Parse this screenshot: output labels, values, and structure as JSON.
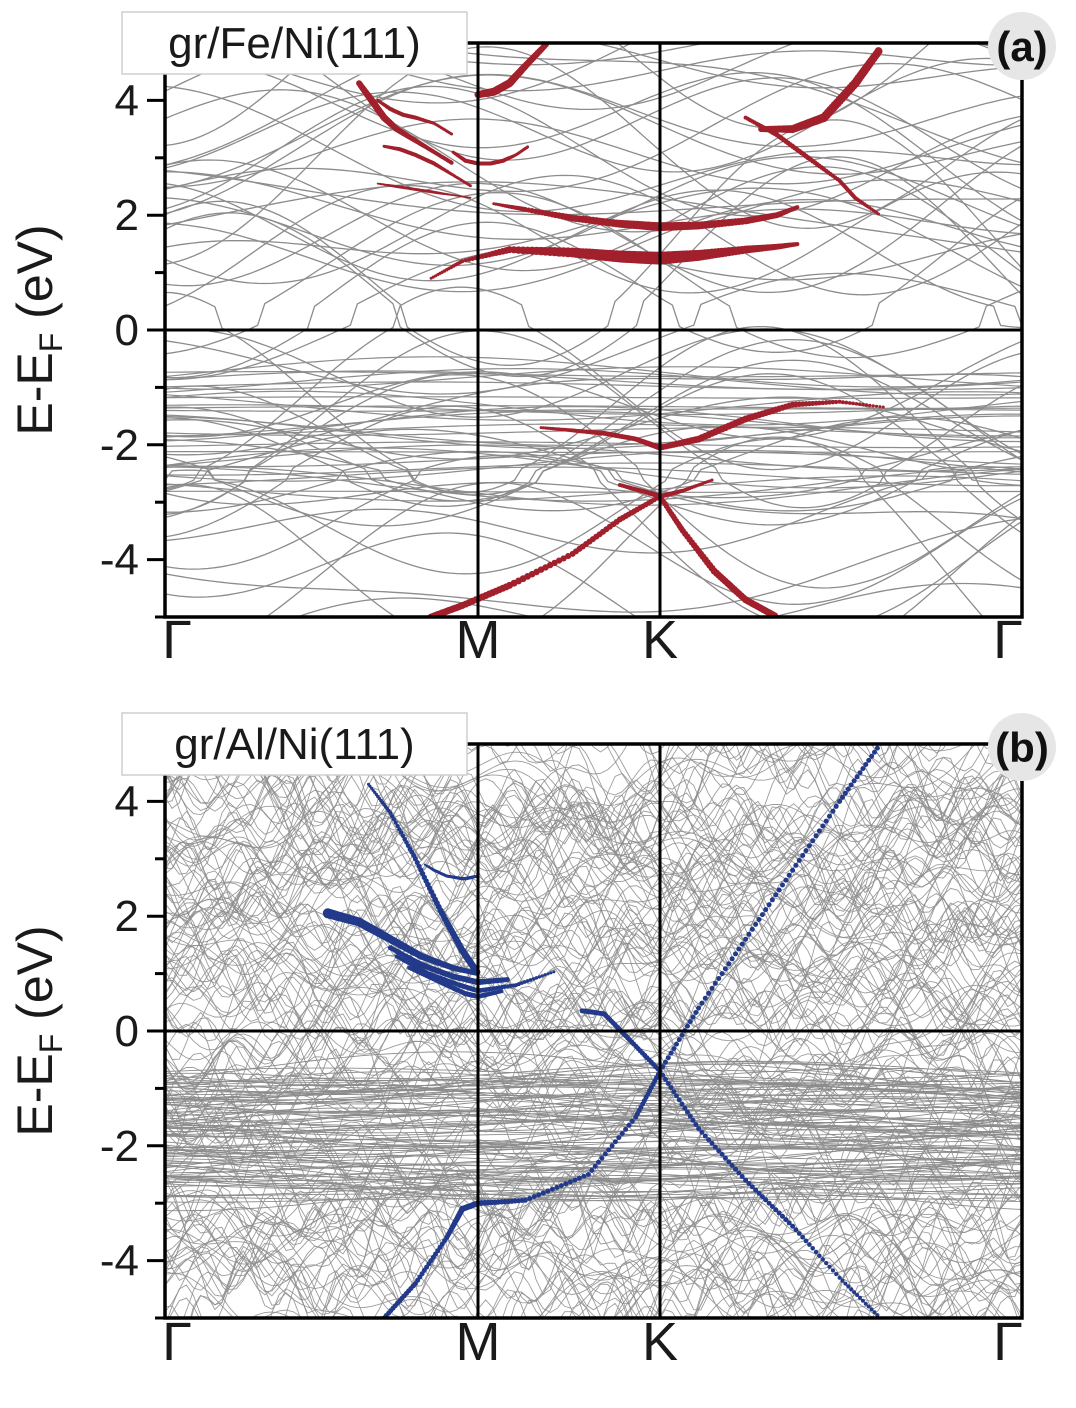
{
  "figure": {
    "band_color": "#8c8c8c",
    "frame_color": "#000000",
    "ylabel_main": "E-E",
    "ylabel_sub": "F",
    "ylabel_unit": " (eV)"
  },
  "chart_data": [
    {
      "type": "line",
      "panel_label": "(a)",
      "title": "gr/Fe/Ni(111)",
      "xlabel": "",
      "ylabel": "E-EF (eV)",
      "ylim": [
        -5,
        5
      ],
      "k_points": [
        "Γ",
        "M",
        "K",
        "Γ"
      ],
      "k_positions": [
        0,
        1,
        1.577,
        2.732
      ],
      "yticks": [
        -4,
        -2,
        0,
        2,
        4
      ],
      "fermi_level": 0,
      "bulk_band_count": 60,
      "projected_color": "#a1202c",
      "series": [
        {
          "name": "projected-top-left",
          "x": [
            0.62,
            0.66,
            0.7,
            0.74,
            0.8,
            0.86,
            0.92
          ],
          "y": [
            4.3,
            4.0,
            3.7,
            3.5,
            3.3,
            3.1,
            2.9
          ],
          "weight": [
            6,
            7,
            7,
            6,
            5,
            4,
            4
          ]
        },
        {
          "name": "projected-branch-3.8",
          "x": [
            0.68,
            0.72,
            0.76,
            0.8,
            0.86,
            0.92
          ],
          "y": [
            4.0,
            3.85,
            3.75,
            3.7,
            3.6,
            3.4
          ],
          "weight": [
            3,
            4,
            4,
            4,
            3,
            3
          ]
        },
        {
          "name": "projected-branch-3.1",
          "x": [
            0.7,
            0.75,
            0.8,
            0.86,
            0.92,
            0.98
          ],
          "y": [
            3.2,
            3.15,
            3.05,
            2.9,
            2.7,
            2.5
          ],
          "weight": [
            3,
            4,
            4,
            4,
            3,
            3
          ]
        },
        {
          "name": "projected-branch-2.5",
          "x": [
            0.68,
            0.74,
            0.8,
            0.86,
            0.92,
            0.98
          ],
          "y": [
            2.55,
            2.5,
            2.45,
            2.4,
            2.35,
            2.3
          ],
          "weight": [
            2,
            3,
            3,
            3,
            2,
            2
          ]
        },
        {
          "name": "projected-M-upper",
          "x": [
            1.0,
            1.05,
            1.1,
            1.15,
            1.22
          ],
          "y": [
            4.1,
            4.15,
            4.3,
            4.6,
            5.0
          ],
          "weight": [
            7,
            8,
            8,
            7,
            6
          ]
        },
        {
          "name": "projected-M-2.9",
          "x": [
            0.92,
            0.96,
            1.0,
            1.04,
            1.08,
            1.12,
            1.16
          ],
          "y": [
            3.1,
            2.95,
            2.9,
            2.9,
            2.95,
            3.05,
            3.2
          ],
          "weight": [
            3,
            4,
            4,
            4,
            4,
            3,
            3
          ]
        },
        {
          "name": "projected-gap-upper-left",
          "x": [
            1.05,
            1.15,
            1.3,
            1.45,
            1.577
          ],
          "y": [
            2.2,
            2.1,
            1.95,
            1.85,
            1.8
          ],
          "weight": [
            3,
            5,
            7,
            8,
            9
          ]
        },
        {
          "name": "projected-gap-upper-right",
          "x": [
            1.577,
            1.7,
            1.85,
            1.95,
            2.02
          ],
          "y": [
            1.8,
            1.82,
            1.9,
            2.0,
            2.15
          ],
          "weight": [
            9,
            8,
            7,
            6,
            4
          ]
        },
        {
          "name": "projected-gap-lower-left",
          "x": [
            0.85,
            0.95,
            1.1,
            1.3,
            1.45,
            1.577
          ],
          "y": [
            0.9,
            1.2,
            1.4,
            1.35,
            1.28,
            1.25
          ],
          "weight": [
            3,
            4,
            7,
            10,
            12,
            13
          ]
        },
        {
          "name": "projected-gap-lower-right",
          "x": [
            1.577,
            1.7,
            1.85,
            1.95,
            2.02
          ],
          "y": [
            1.25,
            1.3,
            1.4,
            1.45,
            1.5
          ],
          "weight": [
            13,
            11,
            8,
            6,
            4
          ]
        },
        {
          "name": "projected-fan-right",
          "x": [
            1.85,
            1.95,
            2.05,
            2.15,
            2.2,
            2.28
          ],
          "y": [
            3.7,
            3.4,
            3.0,
            2.6,
            2.3,
            2.0
          ],
          "weight": [
            4,
            5,
            5,
            4,
            4,
            3
          ]
        },
        {
          "name": "projected-right-upper",
          "x": [
            1.9,
            2.0,
            2.1,
            2.2,
            2.28
          ],
          "y": [
            3.5,
            3.5,
            3.7,
            4.3,
            4.9
          ],
          "weight": [
            6,
            8,
            9,
            9,
            8
          ]
        },
        {
          "name": "projected-valence-fan",
          "x": [
            1.2,
            1.3,
            1.4,
            1.5,
            1.577
          ],
          "y": [
            -1.7,
            -1.75,
            -1.8,
            -1.9,
            -2.05
          ],
          "weight": [
            3,
            4,
            5,
            5,
            6
          ]
        },
        {
          "name": "projected-valence-right",
          "x": [
            1.577,
            1.7,
            1.85,
            2.0,
            2.15,
            2.3
          ],
          "y": [
            -2.05,
            -1.9,
            -1.55,
            -1.3,
            -1.25,
            -1.35
          ],
          "weight": [
            6,
            7,
            7,
            6,
            4,
            3
          ]
        },
        {
          "name": "projected-K-crossing-left",
          "x": [
            0.85,
            0.95,
            1.1,
            1.3,
            1.45,
            1.577
          ],
          "y": [
            -5.0,
            -4.8,
            -4.45,
            -3.9,
            -3.3,
            -2.9
          ],
          "weight": [
            7,
            7,
            7,
            6,
            6,
            5
          ]
        },
        {
          "name": "projected-K-crossing-right",
          "x": [
            1.577,
            1.65,
            1.75,
            1.85,
            1.95
          ],
          "y": [
            -2.9,
            -3.5,
            -4.2,
            -4.7,
            -5.0
          ],
          "weight": [
            5,
            6,
            7,
            7,
            7
          ]
        },
        {
          "name": "projected-K-upper",
          "x": [
            1.45,
            1.55,
            1.577,
            1.65,
            1.75
          ],
          "y": [
            -2.7,
            -2.85,
            -2.9,
            -2.8,
            -2.6
          ],
          "weight": [
            4,
            5,
            5,
            4,
            3
          ]
        }
      ]
    },
    {
      "type": "line",
      "panel_label": "(b)",
      "title": "gr/Al/Ni(111)",
      "xlabel": "",
      "ylabel": "E-EF (eV)",
      "ylim": [
        -5,
        5
      ],
      "k_points": [
        "Γ",
        "M",
        "K",
        "Γ"
      ],
      "k_positions": [
        0,
        1,
        1.577,
        2.732
      ],
      "yticks": [
        -4,
        -2,
        0,
        2,
        4
      ],
      "fermi_level": 0,
      "bulk_band_count": 160,
      "projected_color": "#233a8a",
      "series": [
        {
          "name": "projected-steep-left",
          "x": [
            0.65,
            0.72,
            0.8,
            0.88,
            0.95,
            1.0
          ],
          "y": [
            4.3,
            3.8,
            3.0,
            2.1,
            1.4,
            1.0
          ],
          "weight": [
            3,
            4,
            5,
            6,
            7,
            7
          ]
        },
        {
          "name": "projected-bundle-1",
          "x": [
            0.52,
            0.62,
            0.72,
            0.82,
            0.92,
            1.0
          ],
          "y": [
            2.05,
            1.9,
            1.6,
            1.3,
            1.1,
            1.0
          ],
          "weight": [
            10,
            9,
            8,
            7,
            6,
            5
          ]
        },
        {
          "name": "projected-bundle-2",
          "x": [
            0.72,
            0.82,
            0.92,
            1.0,
            1.1
          ],
          "y": [
            1.45,
            1.15,
            0.95,
            0.85,
            0.9
          ],
          "weight": [
            5,
            6,
            6,
            6,
            5
          ]
        },
        {
          "name": "projected-bundle-3",
          "x": [
            0.74,
            0.84,
            0.94,
            1.0,
            1.12,
            1.25
          ],
          "y": [
            1.3,
            1.0,
            0.8,
            0.7,
            0.8,
            1.05
          ],
          "weight": [
            4,
            5,
            5,
            5,
            4,
            3
          ]
        },
        {
          "name": "projected-bundle-4",
          "x": [
            0.78,
            0.88,
            0.96,
            1.0,
            1.08
          ],
          "y": [
            1.1,
            0.85,
            0.65,
            0.6,
            0.7
          ],
          "weight": [
            4,
            5,
            5,
            5,
            4
          ]
        },
        {
          "name": "projected-M-upper-dots",
          "x": [
            0.83,
            0.86,
            0.9,
            0.95,
            1.0
          ],
          "y": [
            2.9,
            2.8,
            2.7,
            2.65,
            2.7
          ],
          "weight": [
            2,
            3,
            3,
            3,
            3
          ]
        },
        {
          "name": "projected-upper-rising",
          "x": [
            0.9,
            0.96,
            1.0
          ],
          "y": [
            2.7,
            2.65,
            2.7
          ],
          "weight": [
            3,
            3,
            3
          ]
        },
        {
          "name": "projected-dirac-cone-up",
          "x": [
            1.577,
            1.7,
            1.85,
            2.0,
            2.15,
            2.28
          ],
          "y": [
            -0.7,
            0.4,
            1.6,
            2.8,
            4.0,
            5.0
          ],
          "weight": [
            5,
            5,
            5,
            5,
            5,
            5
          ]
        },
        {
          "name": "projected-dirac-cone-down",
          "x": [
            1.577,
            1.7,
            1.85,
            2.0,
            2.15,
            2.28
          ],
          "y": [
            -0.7,
            -1.7,
            -2.6,
            -3.4,
            -4.3,
            -5.0
          ],
          "weight": [
            5,
            5,
            5,
            5,
            4,
            4
          ]
        },
        {
          "name": "projected-left-to-K",
          "x": [
            1.33,
            1.4,
            1.48,
            1.577
          ],
          "y": [
            0.35,
            0.3,
            -0.15,
            -0.7
          ],
          "weight": [
            5,
            5,
            5,
            5
          ]
        },
        {
          "name": "projected-M-valence",
          "x": [
            0.7,
            0.8,
            0.9,
            0.95,
            1.0,
            1.15,
            1.35,
            1.5,
            1.577
          ],
          "y": [
            -5.0,
            -4.4,
            -3.6,
            -3.1,
            -3.0,
            -2.95,
            -2.5,
            -1.5,
            -0.7
          ],
          "weight": [
            5,
            5,
            5,
            6,
            6,
            5,
            5,
            5,
            5
          ]
        }
      ]
    }
  ]
}
